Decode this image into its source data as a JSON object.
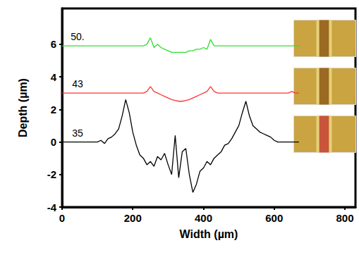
{
  "chart_data": {
    "type": "line",
    "x_label": "Width (µm)",
    "y_label": "Depth (µm)",
    "xlim": [
      0,
      830
    ],
    "xticks": [
      0,
      200,
      400,
      600,
      800
    ],
    "ylim": [
      -4,
      8.2
    ],
    "yticks": [
      -4,
      -2,
      0,
      2,
      4,
      6
    ],
    "grid": false,
    "x": [
      0,
      10,
      20,
      30,
      40,
      50,
      60,
      70,
      80,
      90,
      100,
      110,
      120,
      130,
      140,
      150,
      160,
      170,
      180,
      190,
      200,
      210,
      220,
      230,
      240,
      250,
      260,
      270,
      280,
      290,
      300,
      310,
      320,
      330,
      340,
      350,
      360,
      370,
      380,
      390,
      400,
      410,
      420,
      430,
      440,
      450,
      460,
      470,
      480,
      490,
      500,
      510,
      520,
      530,
      540,
      550,
      560,
      570,
      580,
      590,
      600,
      610,
      620,
      630,
      640,
      650,
      660,
      670
    ],
    "series": [
      {
        "name": "50.",
        "color": "#33dd33",
        "values": [
          5.9,
          5.9,
          5.9,
          5.9,
          5.9,
          5.9,
          5.9,
          5.9,
          5.9,
          5.9,
          5.9,
          5.9,
          5.9,
          5.9,
          5.9,
          5.9,
          5.9,
          5.9,
          5.9,
          5.9,
          5.9,
          5.9,
          5.9,
          5.9,
          6.0,
          6.4,
          5.8,
          6.0,
          5.8,
          5.7,
          5.6,
          5.5,
          5.5,
          5.5,
          5.5,
          5.5,
          5.6,
          5.6,
          5.7,
          5.7,
          5.8,
          5.7,
          6.3,
          5.9,
          5.9,
          5.9,
          5.9,
          5.9,
          5.9,
          5.9,
          5.9,
          5.9,
          5.9,
          5.9,
          5.9,
          5.9,
          5.9,
          5.9,
          5.9,
          5.9,
          5.9,
          5.9,
          5.9,
          5.9,
          5.9,
          5.9,
          5.9,
          5.9
        ]
      },
      {
        "name": "43",
        "color": "#ff3333",
        "values": [
          3.0,
          3.0,
          3.0,
          3.0,
          3.0,
          3.0,
          3.0,
          3.0,
          3.0,
          3.0,
          3.0,
          3.0,
          3.0,
          3.0,
          3.0,
          3.0,
          3.0,
          3.0,
          3.0,
          3.0,
          3.0,
          3.0,
          3.0,
          3.0,
          3.1,
          3.4,
          3.1,
          3.0,
          2.9,
          2.8,
          2.7,
          2.6,
          2.55,
          2.5,
          2.5,
          2.55,
          2.6,
          2.7,
          2.8,
          2.9,
          3.0,
          3.1,
          3.4,
          3.1,
          3.0,
          3.0,
          3.0,
          3.0,
          3.0,
          3.0,
          3.0,
          3.0,
          3.0,
          3.0,
          3.0,
          3.0,
          3.0,
          3.0,
          3.0,
          3.0,
          3.0,
          3.0,
          3.0,
          3.0,
          3.0,
          3.1,
          3.0,
          3.0
        ]
      },
      {
        "name": "35",
        "color": "#000000",
        "values": [
          0,
          0,
          0,
          0,
          0,
          0,
          0,
          0,
          0,
          0,
          0,
          0.1,
          -0.1,
          0.2,
          0.3,
          0.5,
          0.8,
          1.6,
          2.6,
          1.8,
          0.6,
          -0.2,
          -0.8,
          -1.0,
          -1.4,
          -1.2,
          -1.5,
          -0.9,
          -1.1,
          -0.7,
          -1.4,
          -2.0,
          0.4,
          -2.2,
          -0.6,
          -0.4,
          -2.0,
          -3.1,
          -2.6,
          -1.8,
          -1.6,
          -1.2,
          -1.4,
          -1.0,
          -0.8,
          -0.6,
          -0.2,
          -0.1,
          0.2,
          0.6,
          1.0,
          1.8,
          2.5,
          1.6,
          1.0,
          0.8,
          0.6,
          0.5,
          0.4,
          0.3,
          0.1,
          0,
          0,
          0,
          0,
          0,
          0,
          0
        ]
      }
    ]
  }
}
